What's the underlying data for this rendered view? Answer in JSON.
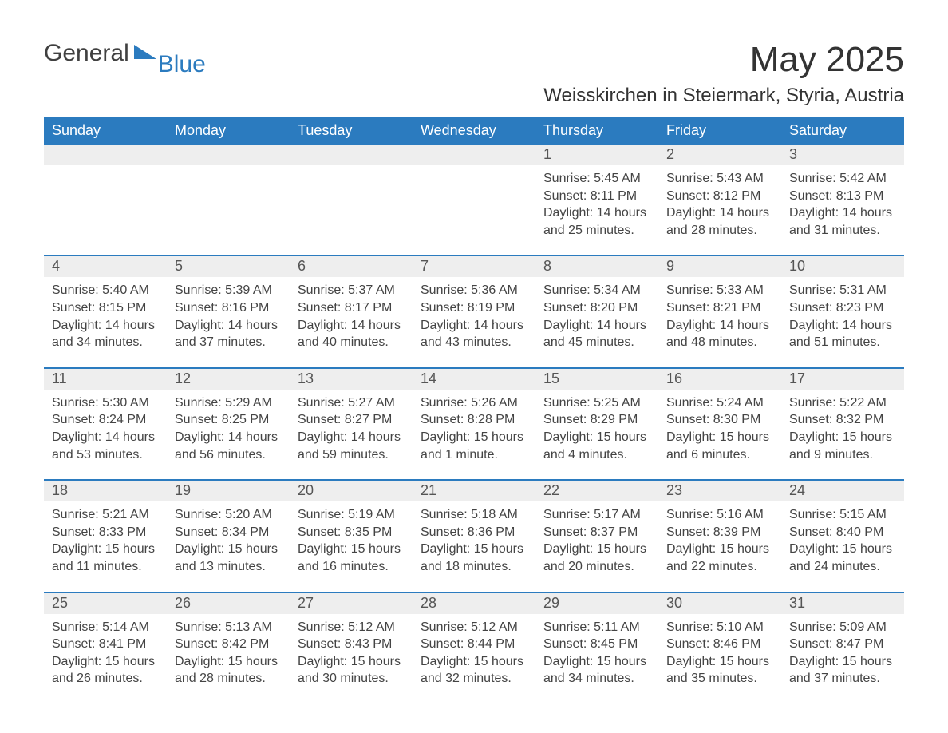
{
  "logo": {
    "text1": "General",
    "text2": "Blue",
    "color_dark": "#404040",
    "color_blue": "#2b7bbf"
  },
  "title": "May 2025",
  "subtitle": "Weisskirchen in Steiermark, Styria, Austria",
  "colors": {
    "header_bg": "#2b7bbf",
    "header_text": "#ffffff",
    "daynum_bg": "#eeeeee",
    "week_divider": "#2b7bbf",
    "body_text": "#444444",
    "background": "#ffffff"
  },
  "fonts": {
    "family": "Arial",
    "title_size_pt": 33,
    "subtitle_size_pt": 18,
    "dow_size_pt": 14,
    "daynum_size_pt": 14,
    "body_size_pt": 12
  },
  "days_of_week": [
    "Sunday",
    "Monday",
    "Tuesday",
    "Wednesday",
    "Thursday",
    "Friday",
    "Saturday"
  ],
  "weeks": [
    [
      {
        "num": "",
        "sunrise": "",
        "sunset": "",
        "daylight": ""
      },
      {
        "num": "",
        "sunrise": "",
        "sunset": "",
        "daylight": ""
      },
      {
        "num": "",
        "sunrise": "",
        "sunset": "",
        "daylight": ""
      },
      {
        "num": "",
        "sunrise": "",
        "sunset": "",
        "daylight": ""
      },
      {
        "num": "1",
        "sunrise": "Sunrise: 5:45 AM",
        "sunset": "Sunset: 8:11 PM",
        "daylight": "Daylight: 14 hours and 25 minutes."
      },
      {
        "num": "2",
        "sunrise": "Sunrise: 5:43 AM",
        "sunset": "Sunset: 8:12 PM",
        "daylight": "Daylight: 14 hours and 28 minutes."
      },
      {
        "num": "3",
        "sunrise": "Sunrise: 5:42 AM",
        "sunset": "Sunset: 8:13 PM",
        "daylight": "Daylight: 14 hours and 31 minutes."
      }
    ],
    [
      {
        "num": "4",
        "sunrise": "Sunrise: 5:40 AM",
        "sunset": "Sunset: 8:15 PM",
        "daylight": "Daylight: 14 hours and 34 minutes."
      },
      {
        "num": "5",
        "sunrise": "Sunrise: 5:39 AM",
        "sunset": "Sunset: 8:16 PM",
        "daylight": "Daylight: 14 hours and 37 minutes."
      },
      {
        "num": "6",
        "sunrise": "Sunrise: 5:37 AM",
        "sunset": "Sunset: 8:17 PM",
        "daylight": "Daylight: 14 hours and 40 minutes."
      },
      {
        "num": "7",
        "sunrise": "Sunrise: 5:36 AM",
        "sunset": "Sunset: 8:19 PM",
        "daylight": "Daylight: 14 hours and 43 minutes."
      },
      {
        "num": "8",
        "sunrise": "Sunrise: 5:34 AM",
        "sunset": "Sunset: 8:20 PM",
        "daylight": "Daylight: 14 hours and 45 minutes."
      },
      {
        "num": "9",
        "sunrise": "Sunrise: 5:33 AM",
        "sunset": "Sunset: 8:21 PM",
        "daylight": "Daylight: 14 hours and 48 minutes."
      },
      {
        "num": "10",
        "sunrise": "Sunrise: 5:31 AM",
        "sunset": "Sunset: 8:23 PM",
        "daylight": "Daylight: 14 hours and 51 minutes."
      }
    ],
    [
      {
        "num": "11",
        "sunrise": "Sunrise: 5:30 AM",
        "sunset": "Sunset: 8:24 PM",
        "daylight": "Daylight: 14 hours and 53 minutes."
      },
      {
        "num": "12",
        "sunrise": "Sunrise: 5:29 AM",
        "sunset": "Sunset: 8:25 PM",
        "daylight": "Daylight: 14 hours and 56 minutes."
      },
      {
        "num": "13",
        "sunrise": "Sunrise: 5:27 AM",
        "sunset": "Sunset: 8:27 PM",
        "daylight": "Daylight: 14 hours and 59 minutes."
      },
      {
        "num": "14",
        "sunrise": "Sunrise: 5:26 AM",
        "sunset": "Sunset: 8:28 PM",
        "daylight": "Daylight: 15 hours and 1 minute."
      },
      {
        "num": "15",
        "sunrise": "Sunrise: 5:25 AM",
        "sunset": "Sunset: 8:29 PM",
        "daylight": "Daylight: 15 hours and 4 minutes."
      },
      {
        "num": "16",
        "sunrise": "Sunrise: 5:24 AM",
        "sunset": "Sunset: 8:30 PM",
        "daylight": "Daylight: 15 hours and 6 minutes."
      },
      {
        "num": "17",
        "sunrise": "Sunrise: 5:22 AM",
        "sunset": "Sunset: 8:32 PM",
        "daylight": "Daylight: 15 hours and 9 minutes."
      }
    ],
    [
      {
        "num": "18",
        "sunrise": "Sunrise: 5:21 AM",
        "sunset": "Sunset: 8:33 PM",
        "daylight": "Daylight: 15 hours and 11 minutes."
      },
      {
        "num": "19",
        "sunrise": "Sunrise: 5:20 AM",
        "sunset": "Sunset: 8:34 PM",
        "daylight": "Daylight: 15 hours and 13 minutes."
      },
      {
        "num": "20",
        "sunrise": "Sunrise: 5:19 AM",
        "sunset": "Sunset: 8:35 PM",
        "daylight": "Daylight: 15 hours and 16 minutes."
      },
      {
        "num": "21",
        "sunrise": "Sunrise: 5:18 AM",
        "sunset": "Sunset: 8:36 PM",
        "daylight": "Daylight: 15 hours and 18 minutes."
      },
      {
        "num": "22",
        "sunrise": "Sunrise: 5:17 AM",
        "sunset": "Sunset: 8:37 PM",
        "daylight": "Daylight: 15 hours and 20 minutes."
      },
      {
        "num": "23",
        "sunrise": "Sunrise: 5:16 AM",
        "sunset": "Sunset: 8:39 PM",
        "daylight": "Daylight: 15 hours and 22 minutes."
      },
      {
        "num": "24",
        "sunrise": "Sunrise: 5:15 AM",
        "sunset": "Sunset: 8:40 PM",
        "daylight": "Daylight: 15 hours and 24 minutes."
      }
    ],
    [
      {
        "num": "25",
        "sunrise": "Sunrise: 5:14 AM",
        "sunset": "Sunset: 8:41 PM",
        "daylight": "Daylight: 15 hours and 26 minutes."
      },
      {
        "num": "26",
        "sunrise": "Sunrise: 5:13 AM",
        "sunset": "Sunset: 8:42 PM",
        "daylight": "Daylight: 15 hours and 28 minutes."
      },
      {
        "num": "27",
        "sunrise": "Sunrise: 5:12 AM",
        "sunset": "Sunset: 8:43 PM",
        "daylight": "Daylight: 15 hours and 30 minutes."
      },
      {
        "num": "28",
        "sunrise": "Sunrise: 5:12 AM",
        "sunset": "Sunset: 8:44 PM",
        "daylight": "Daylight: 15 hours and 32 minutes."
      },
      {
        "num": "29",
        "sunrise": "Sunrise: 5:11 AM",
        "sunset": "Sunset: 8:45 PM",
        "daylight": "Daylight: 15 hours and 34 minutes."
      },
      {
        "num": "30",
        "sunrise": "Sunrise: 5:10 AM",
        "sunset": "Sunset: 8:46 PM",
        "daylight": "Daylight: 15 hours and 35 minutes."
      },
      {
        "num": "31",
        "sunrise": "Sunrise: 5:09 AM",
        "sunset": "Sunset: 8:47 PM",
        "daylight": "Daylight: 15 hours and 37 minutes."
      }
    ]
  ]
}
